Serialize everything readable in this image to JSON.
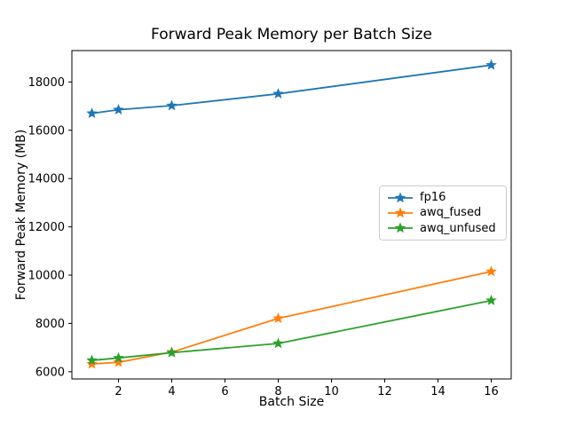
{
  "figure": {
    "background": "#ffffff",
    "spine_color": "#000000",
    "text_color": "#000000"
  },
  "chart_data": {
    "type": "line",
    "title": "Forward Peak Memory per Batch Size",
    "xlabel": "Batch Size",
    "ylabel": "Forward Peak Memory (MB)",
    "x": [
      1,
      2,
      4,
      8,
      16
    ],
    "series": [
      {
        "name": "fp16",
        "color": "#1f77b4",
        "marker": "star",
        "values": [
          16700,
          16850,
          17020,
          17510,
          18700
        ]
      },
      {
        "name": "awq_fused",
        "color": "#ff7f0e",
        "marker": "star",
        "values": [
          6320,
          6390,
          6810,
          8210,
          10150
        ]
      },
      {
        "name": "awq_unfused",
        "color": "#2ca02c",
        "marker": "star",
        "values": [
          6470,
          6570,
          6790,
          7170,
          8950
        ]
      }
    ],
    "xticks": [
      2,
      4,
      6,
      8,
      10,
      12,
      14,
      16
    ],
    "yticks": [
      6000,
      8000,
      10000,
      12000,
      14000,
      16000,
      18000
    ],
    "xlim": [
      0.25,
      16.75
    ],
    "ylim": [
      5700,
      19300
    ],
    "grid": false,
    "legend_position": "center-right",
    "legend_labels": [
      "fp16",
      "awq_fused",
      "awq_unfused"
    ]
  }
}
